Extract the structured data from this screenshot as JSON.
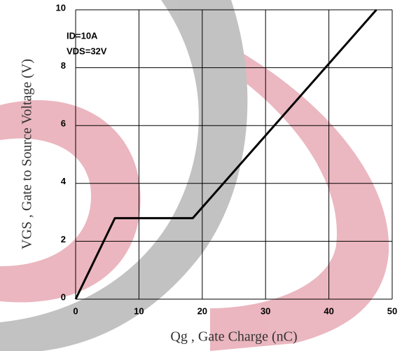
{
  "chart_data": {
    "type": "line",
    "xlabel": "Qg , Gate Charge (nC)",
    "ylabel": "VGS , Gate to Source Voltage (V)",
    "annotations": [
      "ID=10A",
      "VDS=32V"
    ],
    "x": [
      0,
      6.2,
      18.5,
      47.5
    ],
    "series": [
      {
        "color": "#000000",
        "values": [
          0,
          2.8,
          2.8,
          10
        ]
      }
    ],
    "xlim": [
      0,
      50
    ],
    "xticks": [
      0,
      10,
      20,
      30,
      40,
      50
    ],
    "ylim": [
      0,
      10
    ],
    "yticks": [
      0,
      2,
      4,
      6,
      8,
      10
    ],
    "grid": true
  }
}
